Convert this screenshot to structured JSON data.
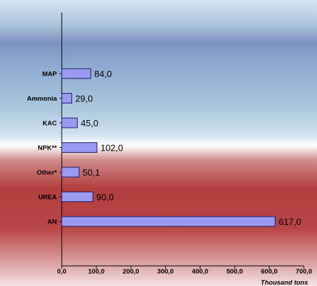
{
  "chart_data": {
    "type": "bar",
    "orientation": "horizontal",
    "categories": [
      "MAP",
      "Ammonia",
      "KAC",
      "NPK**",
      "Other*",
      "UREA",
      "AN"
    ],
    "values": [
      84.0,
      29.0,
      45.0,
      102.0,
      50.1,
      90.0,
      617.0
    ],
    "value_labels": [
      "84,0",
      "29,0",
      "45,0",
      "102,0",
      "50,1",
      "90,0",
      "617,0"
    ],
    "x_ticks": [
      "0,0",
      "100,0",
      "200,0",
      "300,0",
      "400,0",
      "500,0",
      "600,0",
      "700,0"
    ],
    "xlim": [
      0,
      700
    ],
    "xlabel": "Thousand tons",
    "ylabel": "",
    "title": "",
    "grid": false,
    "legend": "none",
    "colors": {
      "bar_fill": "#9a9af0",
      "bar_stroke": "#1a1a6e",
      "bg_top": "#a8c4dc",
      "bg_band": "#7b8fc0",
      "bg_bottom": "#b84848"
    }
  }
}
